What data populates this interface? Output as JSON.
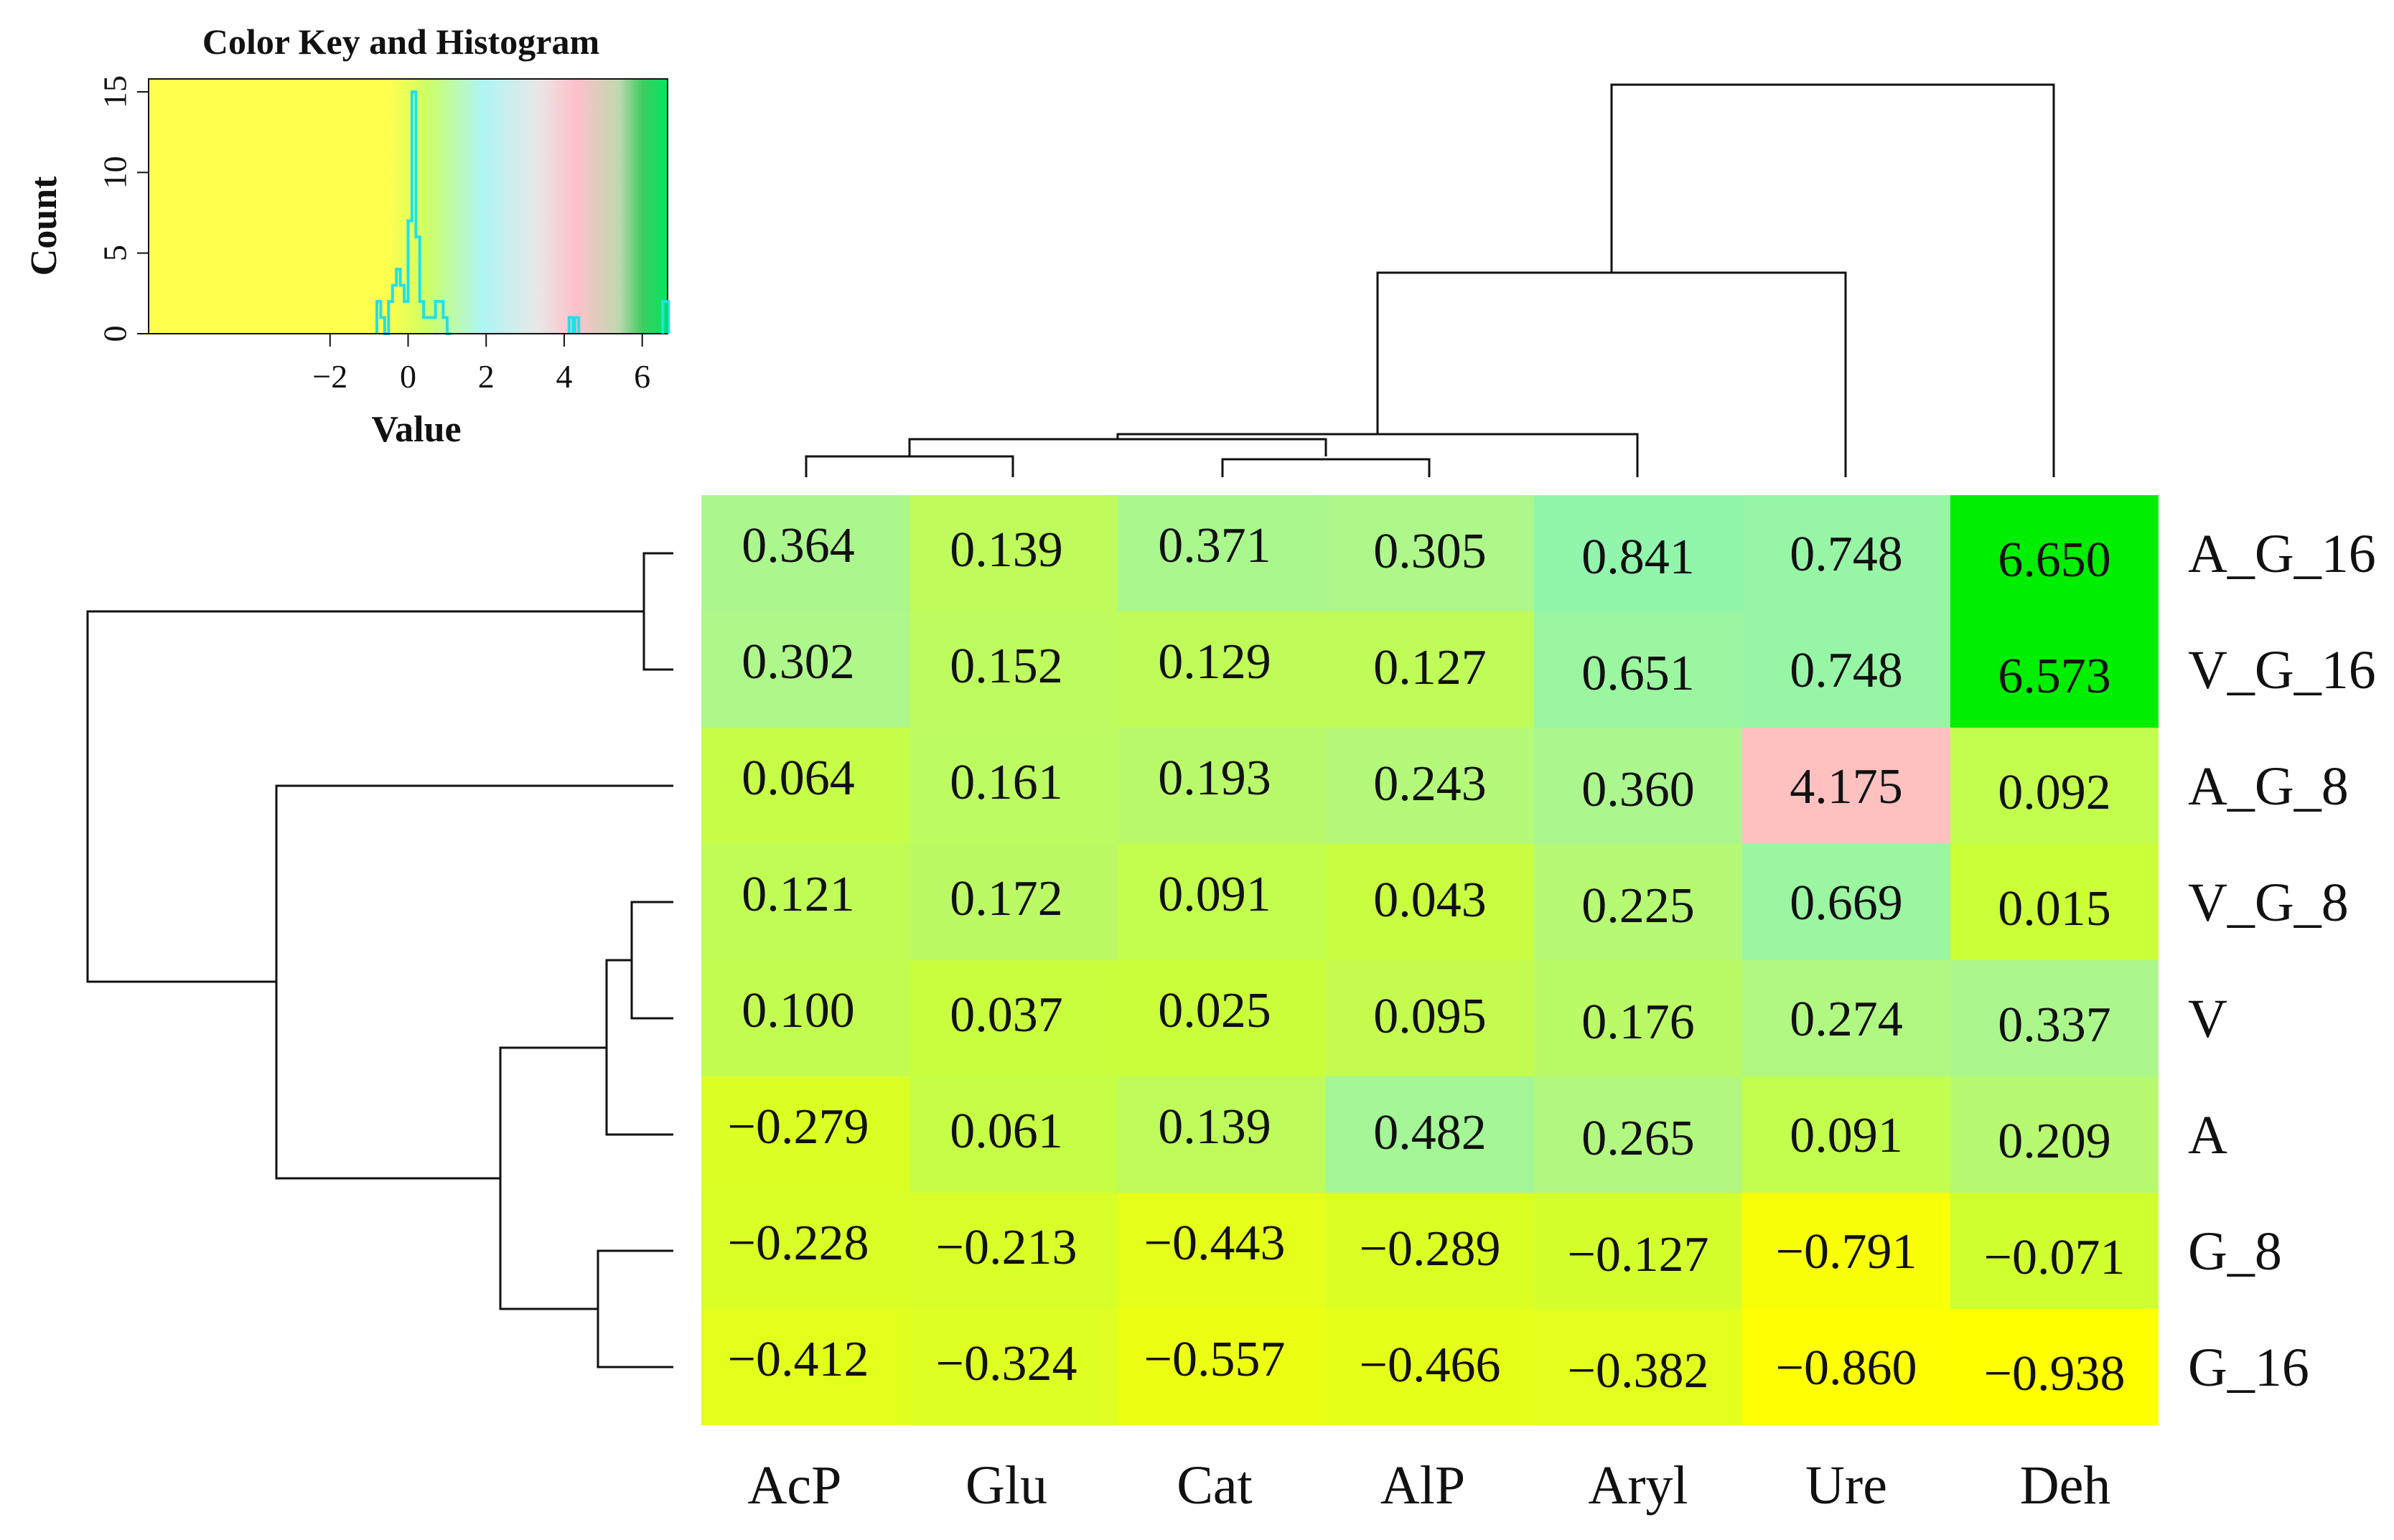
{
  "chart_data": {
    "type": "heatmap",
    "columns": [
      "AcP",
      "Glu",
      "Cat",
      "AlP",
      "Aryl",
      "Ure",
      "Deh"
    ],
    "rows": [
      "A_G_16",
      "V_G_16",
      "A_G_8",
      "V_G_8",
      "V",
      "A",
      "G_8",
      "G_16"
    ],
    "values": [
      [
        "0.364",
        "0.139",
        "0.371",
        "0.305",
        "0.841",
        "0.748",
        "6.650"
      ],
      [
        "0.302",
        "0.152",
        "0.129",
        "0.127",
        "0.651",
        "0.748",
        "6.573"
      ],
      [
        "0.064",
        "0.161",
        "0.193",
        "0.243",
        "0.360",
        "4.175",
        "0.092"
      ],
      [
        "0.121",
        "0.172",
        "0.091",
        "0.043",
        "0.225",
        "0.669",
        "0.015"
      ],
      [
        "0.100",
        "0.037",
        "0.025",
        "0.095",
        "0.176",
        "0.274",
        "0.337"
      ],
      [
        "−0.279",
        "0.061",
        "0.139",
        "0.482",
        "0.265",
        "0.091",
        "0.209"
      ],
      [
        "−0.228",
        "−0.213",
        "−0.443",
        "−0.289",
        "−0.127",
        "−0.791",
        "−0.071"
      ],
      [
        "−0.412",
        "−0.324",
        "−0.557",
        "−0.466",
        "−0.382",
        "−0.860",
        "−0.938"
      ]
    ],
    "color_key": {
      "title": "Color Key and Histogram",
      "xlabel": "Value",
      "ylabel": "Count",
      "x_ticks": [
        "−2",
        "0",
        "2",
        "4",
        "6"
      ],
      "y_ticks": [
        "0",
        "5",
        "10",
        "15"
      ],
      "xlim": [
        -6.65,
        6.65
      ],
      "ylim": [
        0,
        15
      ],
      "histogram": {
        "bin_edges": [
          -0.8,
          -0.7,
          -0.6,
          -0.5,
          -0.4,
          -0.3,
          -0.2,
          -0.1,
          0.0,
          0.1,
          0.2,
          0.3,
          0.4,
          0.5,
          0.6,
          0.7,
          0.8,
          0.9,
          1.0,
          1.1
        ],
        "counts": [
          2,
          1,
          0,
          2,
          3,
          4,
          3,
          2,
          7,
          15,
          6,
          2,
          1,
          1,
          1,
          2,
          2,
          1,
          0
        ]
      },
      "outliers": [
        {
          "value": 4.2,
          "count": 1
        },
        {
          "value": 4.3,
          "count": 1
        },
        {
          "value": 6.6,
          "count": 2
        }
      ],
      "gradient": [
        {
          "value": -6.65,
          "color": "#ffff4d"
        },
        {
          "value": -0.5,
          "color": "#ffff4d"
        },
        {
          "value": 0.5,
          "color": "#ccff66"
        },
        {
          "value": 1.9,
          "color": "#aef5f5"
        },
        {
          "value": 3.3,
          "color": "#e8e8e8"
        },
        {
          "value": 4.3,
          "color": "#ffc0cb"
        },
        {
          "value": 5.4,
          "color": "#c0d8b0"
        },
        {
          "value": 6.0,
          "color": "#40cc60"
        },
        {
          "value": 6.65,
          "color": "#00e660"
        }
      ]
    },
    "cell_colors": {
      "low": "#ffff00",
      "mid_low": "#ccff33",
      "mid": "#aef78a",
      "high_mid": "#8ef5b0",
      "pink": "#ffc0c0",
      "top": "#00ee00"
    },
    "col_dendrogram_order": [
      "AcP",
      "Glu",
      "Cat",
      "AlP",
      "Aryl",
      "Ure",
      "Deh"
    ],
    "row_dendrogram_order": [
      "A_G_16",
      "V_G_16",
      "A_G_8",
      "V_G_8",
      "V",
      "A",
      "G_8",
      "G_16"
    ]
  }
}
